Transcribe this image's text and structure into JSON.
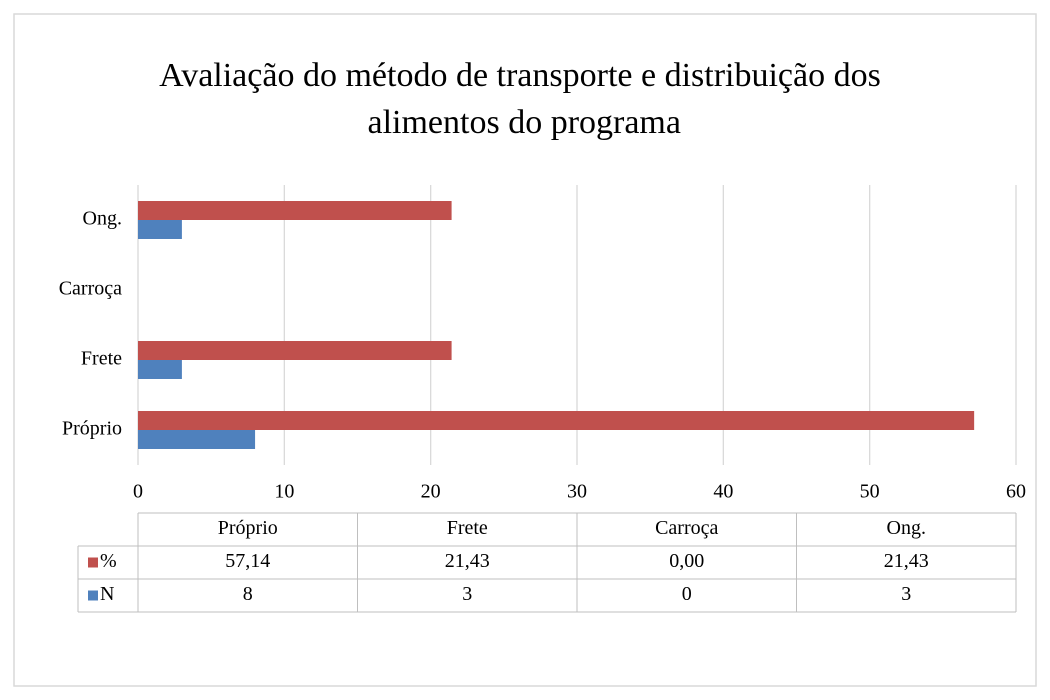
{
  "chart_data": {
    "type": "bar",
    "orientation": "horizontal",
    "title": "Avaliação do método de transporte e distribuição dos alimentos do programa",
    "categories": [
      "Próprio",
      "Frete",
      "Carroça",
      "Ong."
    ],
    "series": [
      {
        "name": "%",
        "color": "#c0504d",
        "values": [
          57.14,
          21.43,
          0,
          21.43
        ],
        "value_labels": [
          "57,14",
          "21,43",
          "0,00",
          "21,43"
        ]
      },
      {
        "name": "N",
        "color": "#4f81bd",
        "values": [
          8,
          3,
          0,
          3
        ]
      }
    ],
    "xlim": [
      0,
      60
    ],
    "xticks": [
      0,
      10,
      20,
      30,
      40,
      50,
      60
    ],
    "grid": true,
    "data_table": true
  }
}
